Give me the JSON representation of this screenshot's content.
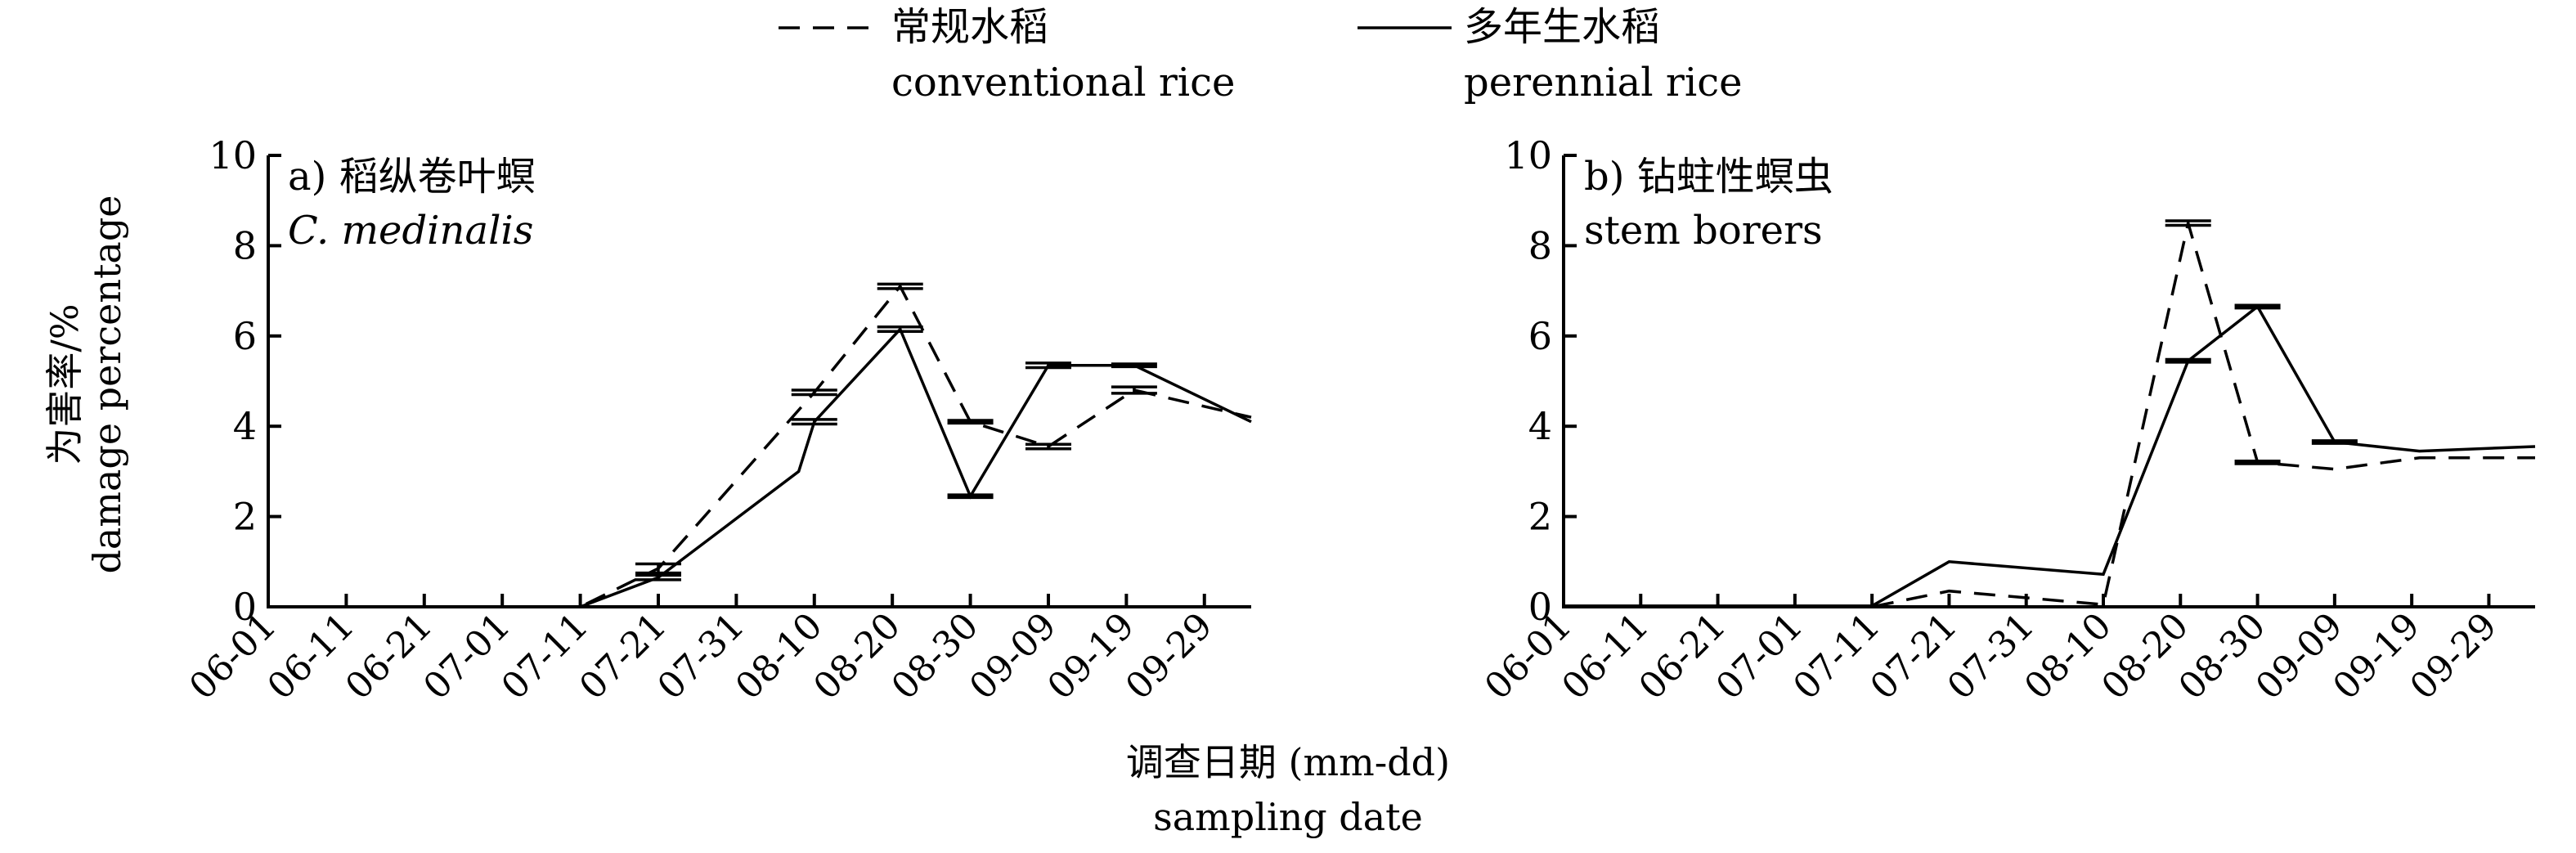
{
  "legend": [
    {
      "zh": "常规水稻",
      "en": "conventional rice",
      "style": "dashed"
    },
    {
      "zh": "多年生水稻",
      "en": "perennial rice",
      "style": "solid"
    }
  ],
  "y_axis": {
    "zh": "为害率/%",
    "en": "damage percentage"
  },
  "x_axis": {
    "zh": "调查日期 (mm-dd)",
    "en": "sampling date"
  },
  "chart_data": [
    {
      "type": "line",
      "title_zh": "a) 稻纵卷叶螟",
      "title_en": "C. medinalis",
      "categories": [
        "06-01",
        "06-11",
        "06-21",
        "07-01",
        "07-11",
        "07-21",
        "07-31",
        "08-10",
        "08-20",
        "08-30",
        "09-09",
        "09-19",
        "09-29"
      ],
      "ylim": [
        0,
        10
      ],
      "yticks": [
        0,
        2,
        4,
        6,
        8,
        10
      ],
      "xlim": [
        "06-01",
        "10-05"
      ],
      "series": [
        {
          "name": "常规水稻 conventional rice",
          "style": "dashed",
          "points": [
            {
              "x": "06-11",
              "y": 0,
              "err": 0
            },
            {
              "x": "07-11",
              "y": 0,
              "err": 0
            },
            {
              "x": "07-21",
              "y": 0.85,
              "err": 0.1
            },
            {
              "x": "08-10",
              "y": 4.75,
              "err": 0.05
            },
            {
              "x": "08-21",
              "y": 7.1,
              "err": 0.05
            },
            {
              "x": "08-30",
              "y": 4.1,
              "err": 0.03
            },
            {
              "x": "09-09",
              "y": 3.55,
              "err": 0.05
            },
            {
              "x": "09-20",
              "y": 4.8,
              "err": 0.07
            },
            {
              "x": "10-05",
              "y": 4.2,
              "err": 0
            }
          ]
        },
        {
          "name": "多年生水稻 perennial rice",
          "style": "solid",
          "points": [
            {
              "x": "06-11",
              "y": 0,
              "err": 0
            },
            {
              "x": "07-11",
              "y": 0,
              "err": 0
            },
            {
              "x": "07-21",
              "y": 0.65,
              "err": 0.05
            },
            {
              "x": "08-08",
              "y": 3.0,
              "err": 0
            },
            {
              "x": "08-10",
              "y": 4.1,
              "err": 0.05
            },
            {
              "x": "08-21",
              "y": 6.15,
              "err": 0.05
            },
            {
              "x": "08-30",
              "y": 2.45,
              "err": 0.03
            },
            {
              "x": "09-09",
              "y": 5.35,
              "err": 0.05
            },
            {
              "x": "09-20",
              "y": 5.35,
              "err": 0.03
            },
            {
              "x": "10-05",
              "y": 4.1,
              "err": 0
            }
          ]
        }
      ]
    },
    {
      "type": "line",
      "title_zh": "b) 钻蛀性螟虫",
      "title_en": "stem borers",
      "categories": [
        "06-01",
        "06-11",
        "06-21",
        "07-01",
        "07-11",
        "07-21",
        "07-31",
        "08-10",
        "08-20",
        "08-30",
        "09-09",
        "09-19",
        "09-29"
      ],
      "ylim": [
        0,
        10
      ],
      "yticks": [
        0,
        2,
        4,
        6,
        8,
        10
      ],
      "xlim": [
        "06-01",
        "10-05"
      ],
      "series": [
        {
          "name": "常规水稻 conventional rice",
          "style": "dashed",
          "points": [
            {
              "x": "06-01",
              "y": 0,
              "err": 0
            },
            {
              "x": "07-11",
              "y": 0,
              "err": 0
            },
            {
              "x": "07-21",
              "y": 0.35,
              "err": 0
            },
            {
              "x": "08-10",
              "y": 0.05,
              "err": 0
            },
            {
              "x": "08-21",
              "y": 8.5,
              "err": 0.05
            },
            {
              "x": "08-30",
              "y": 3.2,
              "err": 0.03
            },
            {
              "x": "09-09",
              "y": 3.05,
              "err": 0
            },
            {
              "x": "09-20",
              "y": 3.3,
              "err": 0
            },
            {
              "x": "10-05",
              "y": 3.3,
              "err": 0
            }
          ]
        },
        {
          "name": "多年生水稻 perennial rice",
          "style": "solid",
          "points": [
            {
              "x": "06-01",
              "y": 0.02,
              "err": 0
            },
            {
              "x": "07-11",
              "y": 0.02,
              "err": 0
            },
            {
              "x": "07-21",
              "y": 1.0,
              "err": 0
            },
            {
              "x": "08-10",
              "y": 0.72,
              "err": 0
            },
            {
              "x": "08-21",
              "y": 5.45,
              "err": 0.03
            },
            {
              "x": "08-30",
              "y": 6.65,
              "err": 0.03
            },
            {
              "x": "09-09",
              "y": 3.65,
              "err": 0.03
            },
            {
              "x": "09-20",
              "y": 3.45,
              "err": 0
            },
            {
              "x": "10-05",
              "y": 3.55,
              "err": 0
            }
          ]
        }
      ]
    }
  ]
}
